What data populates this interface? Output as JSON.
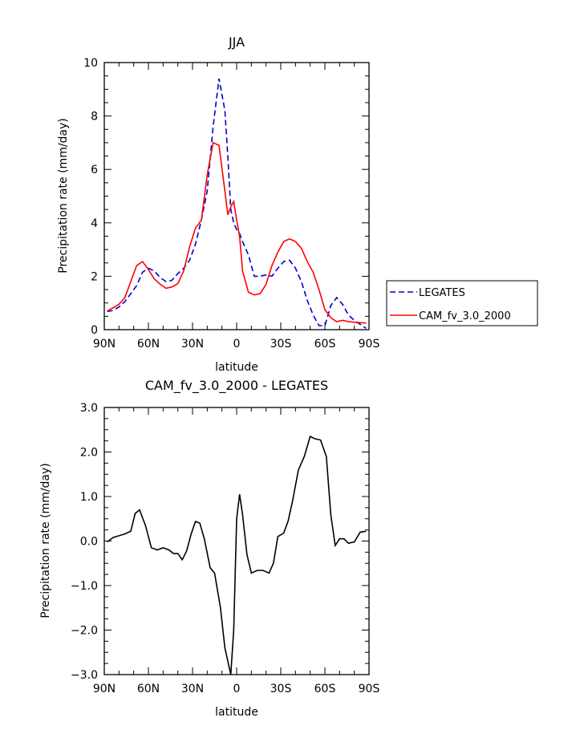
{
  "chart_data": [
    {
      "type": "line",
      "title": "JJA",
      "xlabel": "latitude",
      "ylabel": "Precipitation rate (mm/day)",
      "x_ticks": [
        "90N",
        "60N",
        "30N",
        "0",
        "30S",
        "60S",
        "90S"
      ],
      "xlim": [
        90,
        -90
      ],
      "ylim": [
        0,
        10
      ],
      "y_ticks": [
        "0",
        "2",
        "4",
        "6",
        "8",
        "10"
      ],
      "grid": false,
      "legend": "outside-right",
      "x": [
        88,
        84,
        80,
        76,
        72,
        68,
        64,
        60,
        56,
        52,
        48,
        44,
        40,
        36,
        32,
        28,
        24,
        20,
        16,
        12,
        8,
        6,
        4,
        2,
        0,
        -2,
        -4,
        -8,
        -12,
        -16,
        -20,
        -24,
        -28,
        -32,
        -36,
        -40,
        -44,
        -48,
        -52,
        -56,
        -60,
        -64,
        -68,
        -72,
        -76,
        -80,
        -84,
        -88
      ],
      "series": [
        {
          "name": "LEGATES",
          "color": "#0000cc",
          "dash": "dashed",
          "values": [
            0.68,
            0.72,
            0.85,
            1.05,
            1.35,
            1.65,
            2.15,
            2.3,
            2.2,
            1.95,
            1.8,
            1.85,
            2.1,
            2.3,
            2.6,
            3.2,
            4.1,
            5.2,
            7.6,
            9.4,
            8.2,
            6.5,
            4.5,
            4.0,
            3.75,
            3.6,
            3.3,
            2.8,
            2.0,
            2.0,
            2.05,
            2.0,
            2.3,
            2.55,
            2.6,
            2.3,
            1.8,
            1.1,
            0.55,
            0.15,
            0.15,
            0.9,
            1.2,
            0.95,
            0.55,
            0.35,
            0.2,
            0.05
          ]
        },
        {
          "name": "CAM_fv_3.0_2000",
          "color": "#ff0000",
          "dash": "solid",
          "values": [
            0.7,
            0.82,
            0.95,
            1.2,
            1.8,
            2.4,
            2.55,
            2.25,
            1.9,
            1.7,
            1.55,
            1.6,
            1.72,
            2.2,
            3.1,
            3.8,
            4.1,
            5.8,
            7.0,
            6.9,
            5.2,
            4.3,
            4.6,
            4.8,
            4.1,
            3.5,
            2.2,
            1.4,
            1.3,
            1.35,
            1.7,
            2.4,
            2.9,
            3.3,
            3.4,
            3.3,
            3.05,
            2.55,
            2.15,
            1.5,
            0.75,
            0.45,
            0.3,
            0.35,
            0.3,
            0.28,
            0.26,
            0.25
          ]
        }
      ]
    },
    {
      "type": "line",
      "title": "CAM_fv_3.0_2000 - LEGATES",
      "xlabel": "latitude",
      "ylabel": "Precipitation rate (mm/day)",
      "x_ticks": [
        "90N",
        "60N",
        "30N",
        "0",
        "30S",
        "60S",
        "90S"
      ],
      "xlim": [
        90,
        -90
      ],
      "ylim": [
        -3,
        3
      ],
      "y_ticks": [
        "−3.0",
        "−2.0",
        "−1.0",
        "0.0",
        "1.0",
        "2.0",
        "3.0"
      ],
      "grid": false,
      "x": [
        88,
        84,
        80,
        76,
        72,
        69,
        66,
        62,
        58,
        54,
        50,
        46,
        43,
        40,
        37,
        34,
        31,
        28,
        25,
        22,
        18,
        15,
        11,
        8,
        4,
        2,
        0,
        -2,
        -4,
        -7,
        -10,
        -14,
        -18,
        -22,
        -25,
        -28,
        -32,
        -35,
        -38,
        -42,
        -46,
        -50,
        -53,
        -57,
        -61,
        -64,
        -67,
        -70,
        -73,
        -76,
        -80,
        -84,
        -88
      ],
      "series": [
        {
          "name": "",
          "color": "#000000",
          "dash": "solid",
          "values": [
            -0.02,
            0.08,
            0.12,
            0.16,
            0.22,
            0.62,
            0.7,
            0.35,
            -0.15,
            -0.2,
            -0.15,
            -0.2,
            -0.28,
            -0.28,
            -0.42,
            -0.22,
            0.15,
            0.44,
            0.4,
            0.05,
            -0.6,
            -0.72,
            -1.5,
            -2.4,
            -3.0,
            -2.0,
            0.5,
            1.05,
            0.6,
            -0.3,
            -0.72,
            -0.66,
            -0.66,
            -0.72,
            -0.5,
            0.1,
            0.18,
            0.45,
            0.9,
            1.6,
            1.9,
            2.35,
            2.3,
            2.27,
            1.9,
            0.6,
            -0.1,
            0.05,
            0.05,
            -0.05,
            -0.02,
            0.2,
            0.22
          ]
        }
      ]
    }
  ]
}
